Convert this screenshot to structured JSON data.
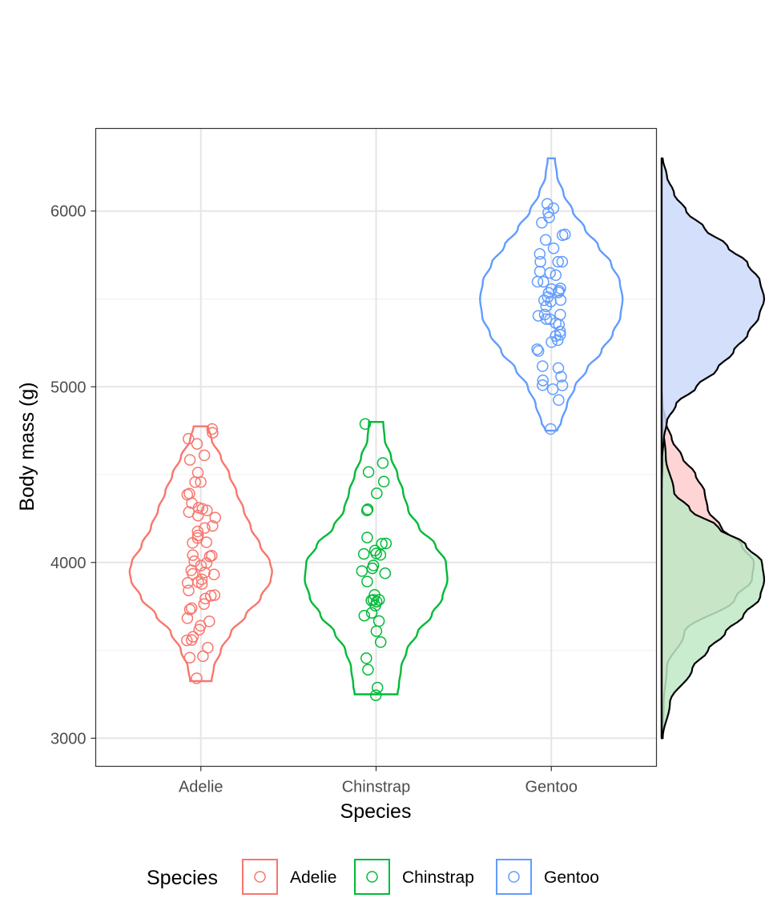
{
  "chart_data": {
    "type": "violin",
    "title": "",
    "xlabel": "Species",
    "ylabel": "Body mass (g)",
    "categories": [
      "Adelie",
      "Chinstrap",
      "Gentoo"
    ],
    "ylim": [
      2840,
      6470
    ],
    "yticks": [
      3000,
      4000,
      5000,
      6000
    ],
    "grid": true,
    "legend": {
      "title": "Species",
      "position": "bottom",
      "entries": [
        "Adelie",
        "Chinstrap",
        "Gentoo"
      ]
    },
    "colors": {
      "Adelie": "#F8766D",
      "Chinstrap": "#00BA38",
      "Gentoo": "#619CFF"
    },
    "density_fill_colors": {
      "Adelie": "#ffcccc",
      "Chinstrap": "#bfe8c6",
      "Gentoo": "#cdd9fc"
    },
    "series": [
      {
        "name": "Adelie",
        "min": 3325,
        "max": 4775,
        "violin_profile": [
          [
            3325,
            0.15
          ],
          [
            3400,
            0.18
          ],
          [
            3500,
            0.28
          ],
          [
            3600,
            0.42
          ],
          [
            3700,
            0.63
          ],
          [
            3800,
            0.84
          ],
          [
            3900,
            0.98
          ],
          [
            3950,
            1.0
          ],
          [
            4000,
            0.97
          ],
          [
            4100,
            0.83
          ],
          [
            4200,
            0.7
          ],
          [
            4300,
            0.6
          ],
          [
            4400,
            0.5
          ],
          [
            4500,
            0.4
          ],
          [
            4600,
            0.28
          ],
          [
            4700,
            0.15
          ],
          [
            4775,
            0.1
          ]
        ],
        "points": [
          4775,
          4700,
          4725,
          4675,
          4600,
          4600,
          4500,
          4450,
          4400,
          4450,
          4400,
          4350,
          4300,
          4300,
          4300,
          4275,
          4250,
          4250,
          4200,
          4200,
          4175,
          4150,
          4150,
          4100,
          4100,
          4050,
          4050,
          4050,
          4000,
          4000,
          4000,
          3950,
          3950,
          3950,
          3925,
          3900,
          3900,
          3900,
          3875,
          3850,
          3800,
          3800,
          3800,
          3775,
          3750,
          3750,
          3700,
          3650,
          3650,
          3600,
          3575,
          3550,
          3550,
          3500,
          3475,
          3450,
          3325
        ]
      },
      {
        "name": "Chinstrap",
        "min": 3250,
        "max": 4800,
        "violin_profile": [
          [
            3250,
            0.3
          ],
          [
            3300,
            0.32
          ],
          [
            3400,
            0.35
          ],
          [
            3500,
            0.43
          ],
          [
            3600,
            0.58
          ],
          [
            3700,
            0.78
          ],
          [
            3800,
            0.93
          ],
          [
            3900,
            1.0
          ],
          [
            4000,
            0.98
          ],
          [
            4100,
            0.83
          ],
          [
            4200,
            0.6
          ],
          [
            4300,
            0.45
          ],
          [
            4400,
            0.38
          ],
          [
            4500,
            0.3
          ],
          [
            4600,
            0.21
          ],
          [
            4700,
            0.12
          ],
          [
            4800,
            0.1
          ]
        ],
        "points": [
          4800,
          4550,
          4500,
          4450,
          4400,
          4300,
          4300,
          4150,
          4100,
          4100,
          4050,
          4050,
          4050,
          4050,
          4000,
          3950,
          3950,
          3950,
          3900,
          3800,
          3800,
          3800,
          3775,
          3775,
          3750,
          3725,
          3700,
          3650,
          3600,
          3550,
          3450,
          3400,
          3300,
          3250
        ]
      },
      {
        "name": "Gentoo",
        "min": 4750,
        "max": 6300,
        "violin_profile": [
          [
            4750,
            0.08
          ],
          [
            4800,
            0.14
          ],
          [
            4900,
            0.22
          ],
          [
            5000,
            0.33
          ],
          [
            5100,
            0.5
          ],
          [
            5200,
            0.7
          ],
          [
            5300,
            0.86
          ],
          [
            5400,
            0.97
          ],
          [
            5500,
            1.0
          ],
          [
            5600,
            0.96
          ],
          [
            5700,
            0.84
          ],
          [
            5800,
            0.66
          ],
          [
            5900,
            0.47
          ],
          [
            6000,
            0.3
          ],
          [
            6100,
            0.17
          ],
          [
            6200,
            0.08
          ],
          [
            6300,
            0.05
          ]
        ],
        "points": [
          6050,
          6000,
          6000,
          5950,
          5950,
          5850,
          5850,
          5850,
          5800,
          5750,
          5700,
          5700,
          5700,
          5650,
          5650,
          5650,
          5600,
          5600,
          5550,
          5550,
          5550,
          5550,
          5550,
          5500,
          5500,
          5500,
          5500,
          5450,
          5400,
          5400,
          5400,
          5400,
          5400,
          5350,
          5350,
          5300,
          5300,
          5300,
          5250,
          5250,
          5200,
          5200,
          5100,
          5100,
          5050,
          5050,
          5000,
          5000,
          5000,
          4925,
          4750
        ]
      }
    ],
    "marginal_density": [
      {
        "name": "Adelie",
        "min": 3000,
        "max": 6300,
        "profile": [
          [
            3000,
            0.01
          ],
          [
            3200,
            0.02
          ],
          [
            3400,
            0.05
          ],
          [
            3600,
            0.22
          ],
          [
            3800,
            0.72
          ],
          [
            3900,
            0.88
          ],
          [
            4000,
            0.9
          ],
          [
            4100,
            0.78
          ],
          [
            4200,
            0.58
          ],
          [
            4300,
            0.45
          ],
          [
            4400,
            0.42
          ],
          [
            4500,
            0.33
          ],
          [
            4600,
            0.2
          ],
          [
            4700,
            0.1
          ],
          [
            4800,
            0.04
          ],
          [
            4900,
            0.01
          ],
          [
            5000,
            0
          ],
          [
            6300,
            0
          ]
        ]
      },
      {
        "name": "Chinstrap",
        "min": 3000,
        "max": 6300,
        "profile": [
          [
            3000,
            0.01
          ],
          [
            3200,
            0.08
          ],
          [
            3400,
            0.3
          ],
          [
            3500,
            0.45
          ],
          [
            3600,
            0.62
          ],
          [
            3700,
            0.8
          ],
          [
            3800,
            0.96
          ],
          [
            3900,
            1.0
          ],
          [
            4000,
            0.98
          ],
          [
            4100,
            0.82
          ],
          [
            4200,
            0.55
          ],
          [
            4300,
            0.28
          ],
          [
            4400,
            0.12
          ],
          [
            4600,
            0.04
          ],
          [
            4800,
            0.01
          ],
          [
            5000,
            0
          ],
          [
            6300,
            0
          ]
        ]
      },
      {
        "name": "Gentoo",
        "min": 3000,
        "max": 6300,
        "profile": [
          [
            3000,
            0
          ],
          [
            4400,
            0
          ],
          [
            4600,
            0.005
          ],
          [
            4700,
            0.02
          ],
          [
            4800,
            0.05
          ],
          [
            4900,
            0.14
          ],
          [
            5000,
            0.34
          ],
          [
            5100,
            0.54
          ],
          [
            5200,
            0.7
          ],
          [
            5300,
            0.84
          ],
          [
            5400,
            0.95
          ],
          [
            5500,
            1.0
          ],
          [
            5600,
            0.96
          ],
          [
            5700,
            0.84
          ],
          [
            5800,
            0.64
          ],
          [
            5900,
            0.42
          ],
          [
            6000,
            0.24
          ],
          [
            6100,
            0.12
          ],
          [
            6200,
            0.05
          ],
          [
            6300,
            0.01
          ]
        ]
      }
    ]
  }
}
